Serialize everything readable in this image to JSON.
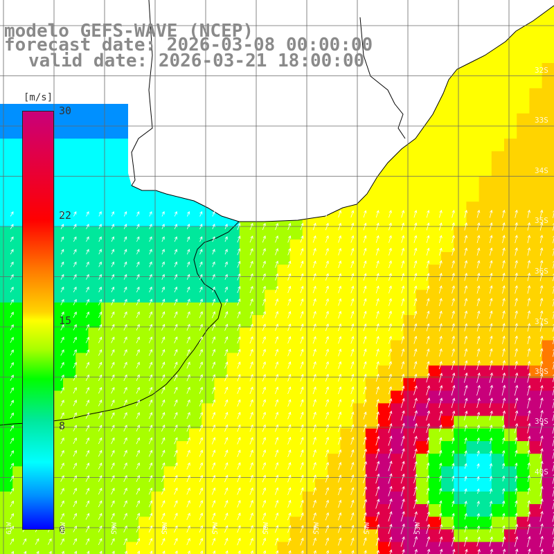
{
  "title": {
    "line1": "modelo GEFS-WAVE (NCEP)",
    "line2": "forecast date: 2026-03-08 00:00:00",
    "line3": "valid date: 2026-03-21 18:00:00"
  },
  "colorbar": {
    "unit": "[m/s]",
    "ticks": [
      "30",
      "22",
      "15",
      "8",
      "0"
    ],
    "tick_values": [
      30,
      22,
      15,
      8,
      0
    ],
    "min": 0,
    "max": 30,
    "colors": [
      "#0000ff",
      "#0090ff",
      "#00ffff",
      "#00e89c",
      "#00ff00",
      "#a8ff00",
      "#ffff00",
      "#ffd400",
      "#ff7a00",
      "#ff0000",
      "#e0004a",
      "#c8007a"
    ]
  },
  "lat_labels": [
    "32S",
    "33S",
    "34S",
    "35S",
    "36S",
    "37S",
    "38S",
    "39S",
    "40S"
  ],
  "lon_labels": [
    "61W",
    "60W",
    "59W",
    "58W",
    "57W",
    "56W",
    "55W",
    "54W",
    "53W"
  ],
  "colors": {
    "land": "#ffffff",
    "coast": "#000000",
    "grid": "#666666",
    "arrow": "#ffffff"
  }
}
